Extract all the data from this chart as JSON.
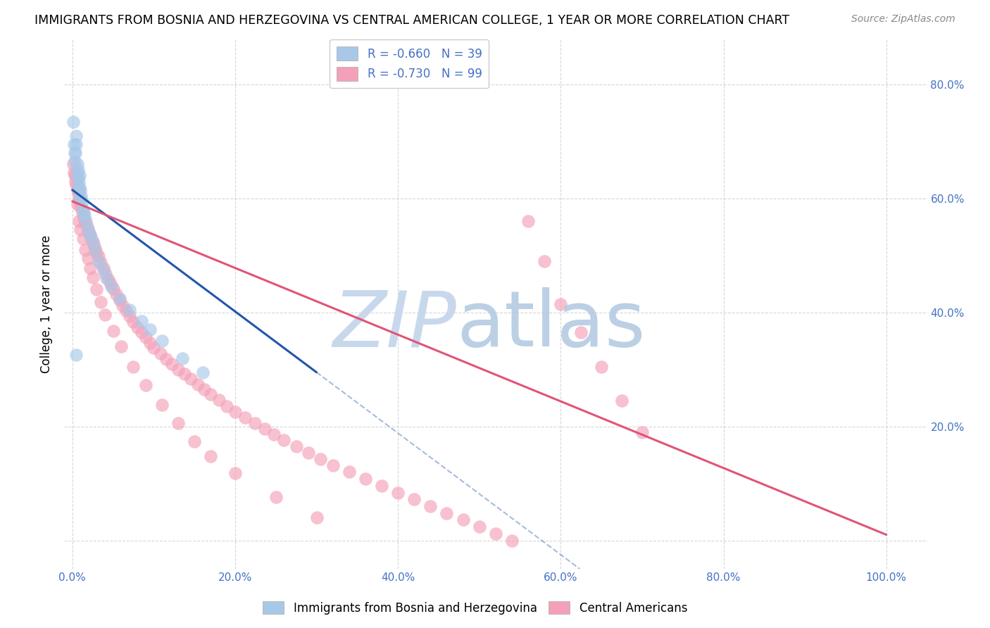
{
  "title": "IMMIGRANTS FROM BOSNIA AND HERZEGOVINA VS CENTRAL AMERICAN COLLEGE, 1 YEAR OR MORE CORRELATION CHART",
  "source": "Source: ZipAtlas.com",
  "ylabel": "College, 1 year or more",
  "r_bosnia": -0.66,
  "n_bosnia": 39,
  "r_central": -0.73,
  "n_central": 99,
  "color_bosnia": "#a8c8e8",
  "color_central": "#f4a0b8",
  "line_color_bosnia": "#2255aa",
  "line_color_central": "#e05575",
  "background_color": "#ffffff",
  "grid_color": "#cccccc",
  "watermark_zip_color": "#c8d8ec",
  "watermark_atlas_color": "#b0c8e0",
  "legend_label_bosnia": "Immigrants from Bosnia and Herzegovina",
  "legend_label_central": "Central Americans",
  "bosnia_x": [
    0.001,
    0.002,
    0.003,
    0.003,
    0.004,
    0.005,
    0.005,
    0.006,
    0.006,
    0.007,
    0.007,
    0.008,
    0.008,
    0.009,
    0.009,
    0.01,
    0.01,
    0.011,
    0.012,
    0.013,
    0.014,
    0.015,
    0.017,
    0.019,
    0.022,
    0.025,
    0.028,
    0.032,
    0.038,
    0.042,
    0.048,
    0.058,
    0.07,
    0.085,
    0.095,
    0.11,
    0.135,
    0.16,
    0.005
  ],
  "bosnia_y": [
    0.735,
    0.695,
    0.68,
    0.665,
    0.68,
    0.71,
    0.695,
    0.66,
    0.645,
    0.65,
    0.635,
    0.63,
    0.615,
    0.64,
    0.62,
    0.615,
    0.6,
    0.605,
    0.595,
    0.58,
    0.575,
    0.57,
    0.56,
    0.545,
    0.535,
    0.525,
    0.51,
    0.49,
    0.475,
    0.46,
    0.445,
    0.425,
    0.405,
    0.385,
    0.37,
    0.35,
    0.32,
    0.295,
    0.325
  ],
  "central_x": [
    0.001,
    0.002,
    0.003,
    0.004,
    0.005,
    0.006,
    0.007,
    0.008,
    0.009,
    0.01,
    0.012,
    0.014,
    0.016,
    0.018,
    0.02,
    0.022,
    0.024,
    0.026,
    0.028,
    0.03,
    0.032,
    0.035,
    0.038,
    0.041,
    0.044,
    0.047,
    0.05,
    0.054,
    0.058,
    0.062,
    0.066,
    0.07,
    0.075,
    0.08,
    0.085,
    0.09,
    0.095,
    0.1,
    0.108,
    0.115,
    0.122,
    0.13,
    0.138,
    0.146,
    0.154,
    0.162,
    0.17,
    0.18,
    0.19,
    0.2,
    0.212,
    0.224,
    0.236,
    0.248,
    0.26,
    0.275,
    0.29,
    0.305,
    0.32,
    0.34,
    0.36,
    0.38,
    0.4,
    0.42,
    0.44,
    0.46,
    0.48,
    0.5,
    0.52,
    0.54,
    0.56,
    0.58,
    0.6,
    0.625,
    0.65,
    0.675,
    0.7,
    0.006,
    0.008,
    0.01,
    0.013,
    0.016,
    0.019,
    0.022,
    0.025,
    0.03,
    0.035,
    0.04,
    0.05,
    0.06,
    0.075,
    0.09,
    0.11,
    0.13,
    0.15,
    0.17,
    0.2,
    0.25,
    0.3
  ],
  "central_y": [
    0.66,
    0.645,
    0.64,
    0.63,
    0.625,
    0.615,
    0.61,
    0.6,
    0.595,
    0.585,
    0.575,
    0.565,
    0.558,
    0.55,
    0.542,
    0.535,
    0.528,
    0.52,
    0.512,
    0.505,
    0.498,
    0.488,
    0.478,
    0.468,
    0.458,
    0.45,
    0.442,
    0.432,
    0.422,
    0.412,
    0.403,
    0.394,
    0.384,
    0.374,
    0.365,
    0.356,
    0.347,
    0.338,
    0.328,
    0.318,
    0.31,
    0.3,
    0.292,
    0.283,
    0.274,
    0.265,
    0.256,
    0.246,
    0.236,
    0.226,
    0.216,
    0.206,
    0.196,
    0.186,
    0.176,
    0.165,
    0.154,
    0.143,
    0.132,
    0.12,
    0.108,
    0.096,
    0.084,
    0.072,
    0.06,
    0.048,
    0.036,
    0.024,
    0.012,
    0.0,
    0.56,
    0.49,
    0.415,
    0.365,
    0.305,
    0.245,
    0.19,
    0.59,
    0.56,
    0.545,
    0.53,
    0.51,
    0.495,
    0.478,
    0.462,
    0.44,
    0.418,
    0.396,
    0.368,
    0.34,
    0.305,
    0.272,
    0.238,
    0.206,
    0.174,
    0.148,
    0.118,
    0.076,
    0.04
  ],
  "bos_line_x0": 0.0,
  "bos_line_x1": 0.3,
  "bos_line_y0": 0.615,
  "bos_line_y1": 0.295,
  "cen_line_x0": 0.0,
  "cen_line_x1": 1.0,
  "cen_line_y0": 0.595,
  "cen_line_y1": 0.01,
  "xlim_min": -0.01,
  "xlim_max": 1.05,
  "ylim_min": -0.05,
  "ylim_max": 0.88,
  "xticks": [
    0.0,
    0.2,
    0.4,
    0.6,
    0.8,
    1.0
  ],
  "yticks": [
    0.0,
    0.2,
    0.4,
    0.6,
    0.8
  ],
  "x_tick_labels": [
    "0.0%",
    "20.0%",
    "40.0%",
    "60.0%",
    "80.0%",
    "100.0%"
  ],
  "y_tick_labels_left": [
    "",
    "",
    "",
    "",
    ""
  ],
  "y_tick_labels_right": [
    "",
    "20.0%",
    "40.0%",
    "60.0%",
    "80.0%"
  ]
}
